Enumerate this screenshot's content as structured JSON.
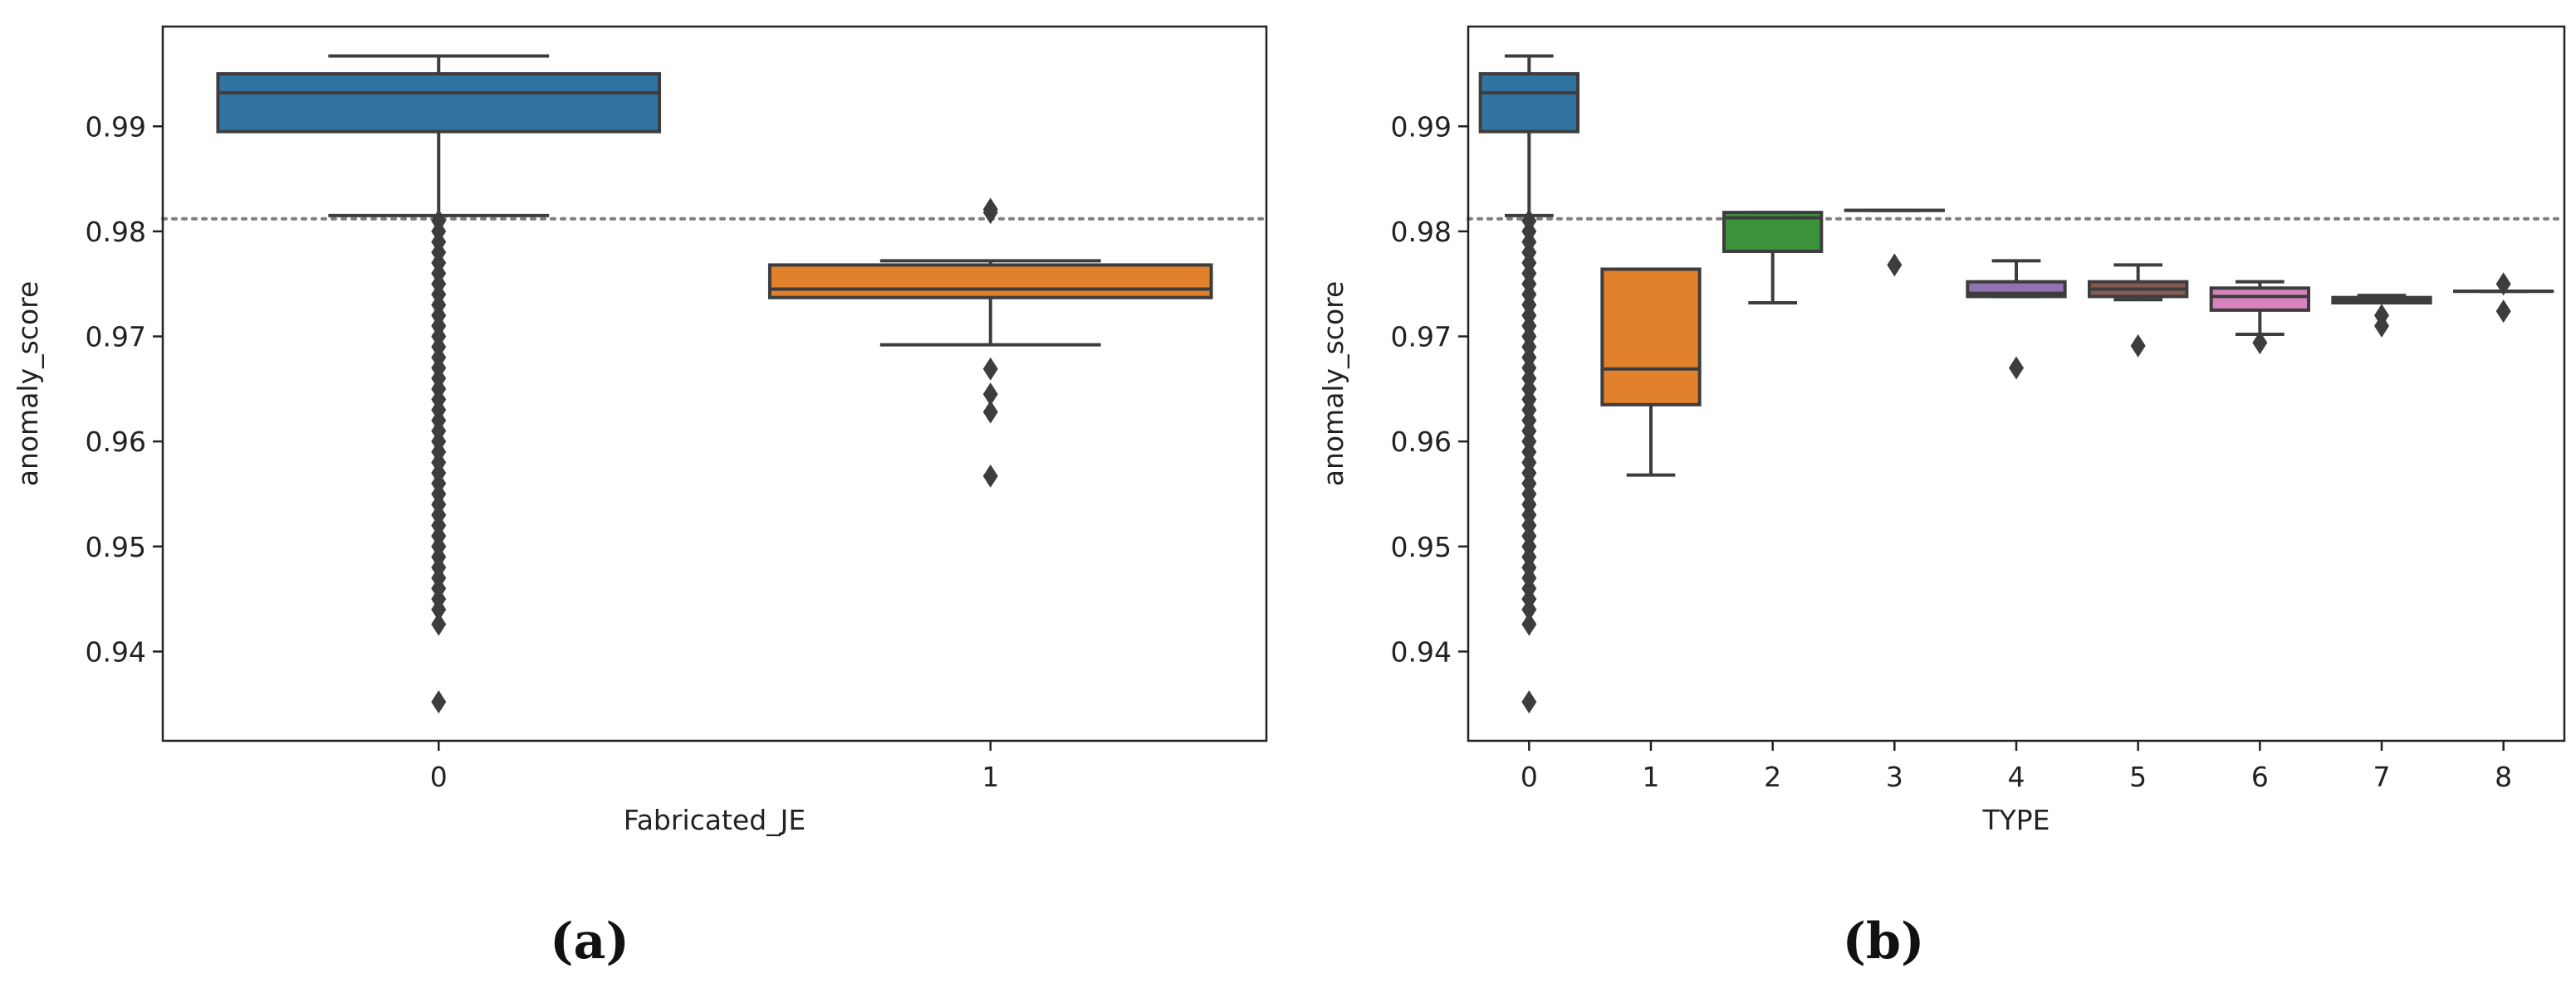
{
  "colors": {
    "c0": "#3274a1",
    "c1": "#e1812c",
    "c2": "#3a923a",
    "c3": "#c03d3e",
    "c4": "#9372b2",
    "c5": "#845b53",
    "c6": "#d684bd",
    "c7": "#7f7f7f",
    "c8": "#a9aa35",
    "line": "#3d3d3d",
    "threshold": "#7f7f7f"
  },
  "chart_data": [
    {
      "type": "box",
      "panel": "a",
      "caption": "(a)",
      "xlabel": "Fabricated_JE",
      "ylabel": "anomaly_score",
      "ylim": [
        0.9315,
        0.9995
      ],
      "yticks": [
        0.94,
        0.95,
        0.96,
        0.97,
        0.98,
        0.99
      ],
      "ytick_labels": [
        "0.94",
        "0.95",
        "0.96",
        "0.97",
        "0.98",
        "0.99"
      ],
      "threshold": 0.9812,
      "categories": [
        "0",
        "1"
      ],
      "boxes": [
        {
          "label": "0",
          "color": "c0",
          "whislo": 0.9815,
          "q1": 0.9895,
          "med": 0.9932,
          "q3": 0.995,
          "whishi": 0.9967,
          "fliers": [
            0.981,
            0.98,
            0.979,
            0.978,
            0.977,
            0.976,
            0.975,
            0.974,
            0.973,
            0.972,
            0.971,
            0.97,
            0.969,
            0.968,
            0.967,
            0.966,
            0.965,
            0.964,
            0.963,
            0.962,
            0.961,
            0.96,
            0.959,
            0.958,
            0.957,
            0.956,
            0.955,
            0.954,
            0.953,
            0.952,
            0.951,
            0.95,
            0.949,
            0.948,
            0.947,
            0.946,
            0.945,
            0.944,
            0.9426,
            0.9352
          ]
        },
        {
          "label": "1",
          "color": "c1",
          "whislo": 0.9692,
          "q1": 0.9737,
          "med": 0.9745,
          "q3": 0.9768,
          "whishi": 0.9772,
          "fliers": [
            0.9821,
            0.9818,
            0.9669,
            0.9645,
            0.9628,
            0.9567
          ]
        }
      ]
    },
    {
      "type": "box",
      "panel": "b",
      "caption": "(b)",
      "xlabel": "TYPE",
      "ylabel": "anomaly_score",
      "ylim": [
        0.9315,
        0.9995
      ],
      "yticks": [
        0.94,
        0.95,
        0.96,
        0.97,
        0.98,
        0.99
      ],
      "ytick_labels": [
        "0.94",
        "0.95",
        "0.96",
        "0.97",
        "0.98",
        "0.99"
      ],
      "threshold": 0.9812,
      "categories": [
        "0",
        "1",
        "2",
        "3",
        "4",
        "5",
        "6",
        "7",
        "8"
      ],
      "boxes": [
        {
          "label": "0",
          "color": "c0",
          "whislo": 0.9815,
          "q1": 0.9895,
          "med": 0.9932,
          "q3": 0.995,
          "whishi": 0.9967,
          "fliers": [
            0.981,
            0.98,
            0.979,
            0.978,
            0.977,
            0.976,
            0.975,
            0.974,
            0.973,
            0.972,
            0.971,
            0.97,
            0.969,
            0.968,
            0.967,
            0.966,
            0.965,
            0.964,
            0.963,
            0.962,
            0.961,
            0.96,
            0.959,
            0.958,
            0.957,
            0.956,
            0.955,
            0.954,
            0.953,
            0.952,
            0.951,
            0.95,
            0.949,
            0.948,
            0.947,
            0.946,
            0.945,
            0.944,
            0.9426,
            0.9352
          ]
        },
        {
          "label": "1",
          "color": "c1",
          "whislo": 0.9568,
          "q1": 0.9635,
          "med": 0.9669,
          "q3": 0.9764,
          "whishi": 0.9764,
          "fliers": []
        },
        {
          "label": "2",
          "color": "c2",
          "whislo": 0.9732,
          "q1": 0.9781,
          "med": 0.9813,
          "q3": 0.9818,
          "whishi": 0.9818,
          "fliers": []
        },
        {
          "label": "3",
          "color": "c3",
          "whislo": 0.982,
          "q1": 0.982,
          "med": 0.982,
          "q3": 0.982,
          "whishi": 0.982,
          "fliers": [
            0.9768
          ]
        },
        {
          "label": "4",
          "color": "c4",
          "whislo": 0.9738,
          "q1": 0.9738,
          "med": 0.9741,
          "q3": 0.9752,
          "whishi": 0.9772,
          "fliers": [
            0.967
          ]
        },
        {
          "label": "5",
          "color": "c5",
          "whislo": 0.9735,
          "q1": 0.9738,
          "med": 0.9745,
          "q3": 0.9752,
          "whishi": 0.9768,
          "fliers": [
            0.9691
          ]
        },
        {
          "label": "6",
          "color": "c6",
          "whislo": 0.9702,
          "q1": 0.9725,
          "med": 0.9738,
          "q3": 0.9746,
          "whishi": 0.9752,
          "fliers": [
            0.9694
          ]
        },
        {
          "label": "7",
          "color": "c7",
          "whislo": 0.9732,
          "q1": 0.9732,
          "med": 0.9734,
          "q3": 0.9737,
          "whishi": 0.9739,
          "fliers": [
            0.972,
            0.971
          ]
        },
        {
          "label": "8",
          "color": "c8",
          "whislo": 0.9743,
          "q1": 0.9743,
          "med": 0.9743,
          "q3": 0.9743,
          "whishi": 0.9743,
          "fliers": [
            0.975,
            0.9724
          ]
        }
      ]
    }
  ]
}
